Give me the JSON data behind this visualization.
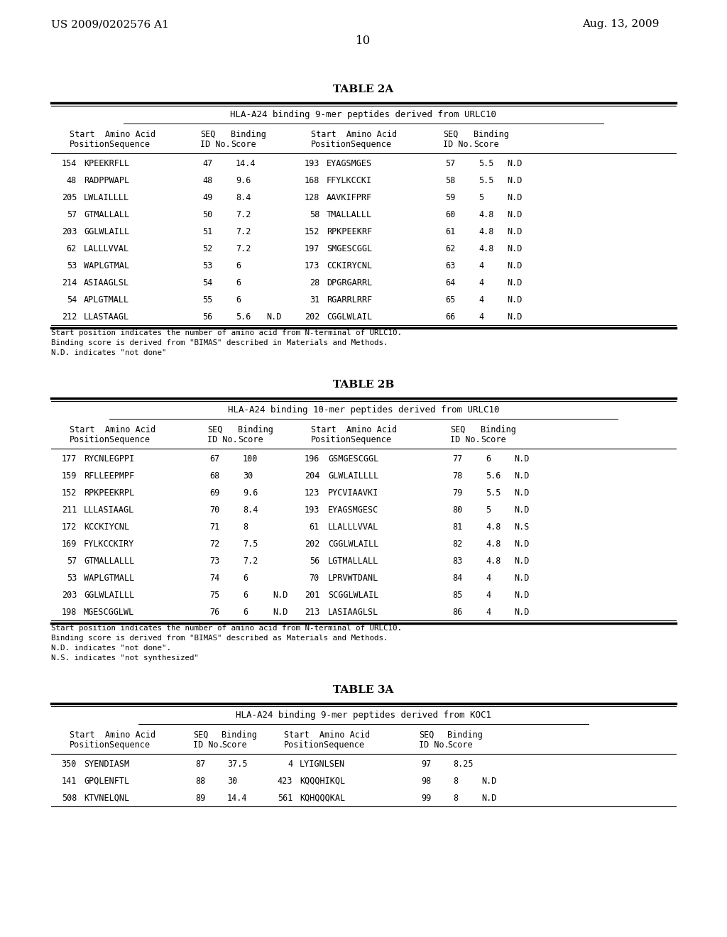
{
  "header_left": "US 2009/0202576 A1",
  "header_right": "Aug. 13, 2009",
  "page_number": "10",
  "background_color": "#ffffff",
  "text_color": "#000000",
  "table2a_title": "TABLE 2A",
  "table2a_subtitle": "HLA-A24 binding 9-mer peptides derived from URLC10",
  "table2a_footnote_lines": [
    "Start position indicates the number of amino acid from N-terminal of URLC10.",
    "Binding score is derived from \"BIMAS\" described in Materials and Methods.",
    "N.D. indicates \"not done\""
  ],
  "table2b_title": "TABLE 2B",
  "table2b_subtitle": "HLA-A24 binding 10-mer peptides derived from URLC10",
  "table2b_footnote_lines": [
    "Start position indicates the number of amino acid from N-terminal of URLC10.",
    "Binding score is derived from \"BIMAS\" described as Materials and Methods.",
    "N.D. indicates \"not done\".",
    "N.S. indicates \"not synthesized\""
  ],
  "table3a_title": "TABLE 3A",
  "table3a_subtitle": "HLA-A24 binding 9-mer peptides derived from KOC1",
  "row_data_2a": [
    [
      "154",
      "KPEEKRFLL",
      "47",
      "14.4",
      "",
      "193",
      "EYAGSMGES",
      "57",
      "5.5",
      "N.D"
    ],
    [
      "48",
      "RADPPWAPL",
      "48",
      "9.6",
      "",
      "168",
      "FFYLKCCKI",
      "58",
      "5.5",
      "N.D"
    ],
    [
      "205",
      "LWLAILLLL",
      "49",
      "8.4",
      "",
      "128",
      "AAVKIFPRF",
      "59",
      "5",
      "N.D"
    ],
    [
      "57",
      "GTMALLALL",
      "50",
      "7.2",
      "",
      "58",
      "TMALLALLL",
      "60",
      "4.8",
      "N.D"
    ],
    [
      "203",
      "GGLWLAILL",
      "51",
      "7.2",
      "",
      "152",
      "RPKPEEKRF",
      "61",
      "4.8",
      "N.D"
    ],
    [
      "62",
      "LALLLVVAL",
      "52",
      "7.2",
      "",
      "197",
      "SMGESCGGL",
      "62",
      "4.8",
      "N.D"
    ],
    [
      "53",
      "WAPLGTMAL",
      "53",
      "6",
      "",
      "173",
      "CCKIRYCNL",
      "63",
      "4",
      "N.D"
    ],
    [
      "214",
      "ASIAAGLSL",
      "54",
      "6",
      "",
      "28",
      "DPGRGARRL",
      "64",
      "4",
      "N.D"
    ],
    [
      "54",
      "APLGTMALL",
      "55",
      "6",
      "",
      "31",
      "RGARRLRRF",
      "65",
      "4",
      "N.D"
    ],
    [
      "212",
      "LLASTAAGL",
      "56",
      "5.6",
      "N.D",
      "202",
      "CGGLWLAIL",
      "66",
      "4",
      "N.D"
    ]
  ],
  "row_data_2b": [
    [
      "177",
      "RYCNLEGPPI",
      "67",
      "100",
      "",
      "196",
      "GSMGESCGGL",
      "77",
      "6",
      "N.D"
    ],
    [
      "159",
      "RFLLEEPMPF",
      "68",
      "30",
      "",
      "204",
      "GLWLAILLLL",
      "78",
      "5.6",
      "N.D"
    ],
    [
      "152",
      "RPKPEEKRPL",
      "69",
      "9.6",
      "",
      "123",
      "PYCVIAAVKI",
      "79",
      "5.5",
      "N.D"
    ],
    [
      "211",
      "LLLASIAAGL",
      "70",
      "8.4",
      "",
      "193",
      "EYAGSMGESC",
      "80",
      "5",
      "N.D"
    ],
    [
      "172",
      "KCCKIYCNL",
      "71",
      "8",
      "",
      "61",
      "LLALLLVVAL",
      "81",
      "4.8",
      "N.S"
    ],
    [
      "169",
      "FYLKCCKIRY",
      "72",
      "7.5",
      "",
      "202",
      "CGGLWLAILL",
      "82",
      "4.8",
      "N.D"
    ],
    [
      "57",
      "GTMALLALLL",
      "73",
      "7.2",
      "",
      "56",
      "LGTMALLALL",
      "83",
      "4.8",
      "N.D"
    ],
    [
      "53",
      "WAPLGTMALL",
      "74",
      "6",
      "",
      "70",
      "LPRVWTDANL",
      "84",
      "4",
      "N.D"
    ],
    [
      "203",
      "GGLWLAILLL",
      "75",
      "6",
      "N.D",
      "201",
      "SCGGLWLAIL",
      "85",
      "4",
      "N.D"
    ],
    [
      "198",
      "MGESCGGLWL",
      "76",
      "6",
      "N.D",
      "213",
      "LASIAAGLSL",
      "86",
      "4",
      "N.D"
    ]
  ],
  "row_data_3a": [
    [
      "350",
      "SYENDIASM",
      "87",
      "37.5",
      "",
      "4",
      "LYIGNLSEN",
      "97",
      "8.25",
      ""
    ],
    [
      "141",
      "GPQLENFTL",
      "88",
      "30",
      "",
      "423",
      "KQQQHIKQL",
      "98",
      "8",
      "N.D"
    ],
    [
      "508",
      "KTVNELQNL",
      "89",
      "14.4",
      "",
      "561",
      "KQHQQQKAL",
      "99",
      "8",
      "N.D"
    ]
  ]
}
